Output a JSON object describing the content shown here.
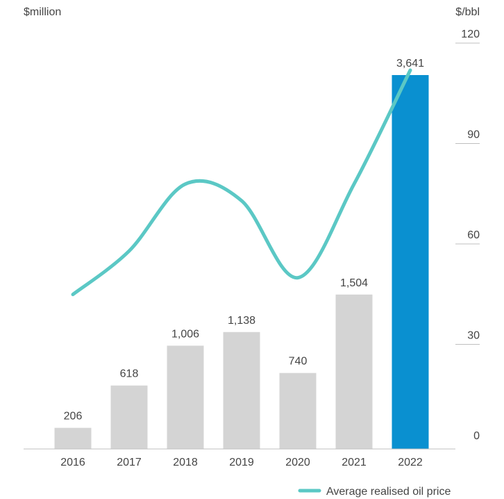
{
  "chart_data": {
    "type": "bar",
    "categories": [
      "2016",
      "2017",
      "2018",
      "2019",
      "2020",
      "2021",
      "2022"
    ],
    "values": [
      206,
      618,
      1006,
      1138,
      740,
      1504,
      3641
    ],
    "value_labels": [
      "206",
      "618",
      "1,006",
      "1,138",
      "740",
      "1,504",
      "3,641"
    ],
    "bar_colors": [
      "#d4d4d4",
      "#d4d4d4",
      "#d4d4d4",
      "#d4d4d4",
      "#d4d4d4",
      "#d4d4d4",
      "#0a90d0"
    ],
    "left_axis_label": "$million",
    "right_axis_label": "$/bbl",
    "right_axis_range": [
      0,
      120
    ],
    "right_axis_ticks": [
      "0",
      "30",
      "60",
      "90",
      "120"
    ],
    "line_series": {
      "name": "Average realised oil price",
      "color": "#5bc8c5",
      "values": [
        42,
        55,
        75,
        70,
        47,
        75,
        109
      ]
    },
    "legend_placement": "bottom-right",
    "grid": false
  }
}
